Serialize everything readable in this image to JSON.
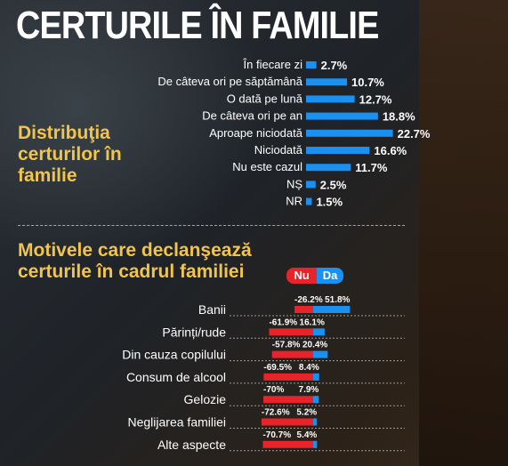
{
  "title": "CERTURILE ÎN FAMILIE",
  "section1_label": "Distribuţia certurilor în familie",
  "section2_label": "Motivele care declanşează certurile în cadrul familiei",
  "legend": {
    "nu": "Nu",
    "da": "Da"
  },
  "colors": {
    "blue": "#1a90f0",
    "red": "#e8232a",
    "accent": "#f2c44a"
  },
  "chart_data": [
    {
      "type": "bar",
      "orientation": "horizontal",
      "categories": [
        "În fiecare zi",
        "De câteva ori pe săptămână",
        "O dată pe lună",
        "De câteva ori pe an",
        "Aproape niciodată",
        "Niciodată",
        "Nu este cazul",
        "NȘ",
        "NR"
      ],
      "values": [
        2.7,
        10.7,
        12.7,
        18.8,
        22.7,
        16.6,
        11.7,
        2.5,
        1.5
      ],
      "value_labels": [
        "2.7%",
        "10.7%",
        "12.7%",
        "18.8%",
        "22.7%",
        "16.6%",
        "11.7%",
        "2.5%",
        "1.5%"
      ]
    },
    {
      "type": "bar",
      "orientation": "horizontal-diverging",
      "categories": [
        "Banii",
        "Părinți/rude",
        "Din cauza copilului",
        "Consum de alcool",
        "Gelozie",
        "Neglijarea familiei",
        "Alte aspecte"
      ],
      "series": [
        {
          "name": "Nu",
          "values": [
            -26.2,
            -61.9,
            -57.8,
            -69.5,
            -70,
            -72.6,
            -70.7
          ],
          "labels": [
            "-26.2%",
            "-61.9%",
            "-57.8%",
            "-69.5%",
            "-70%",
            "-72.6%",
            "-70.7%"
          ]
        },
        {
          "name": "Da",
          "values": [
            51.8,
            16.1,
            20.4,
            8.4,
            7.9,
            5.2,
            5.4
          ],
          "labels": [
            "51.8%",
            "16.1%",
            "20.4%",
            "8.4%",
            "7.9%",
            "5.2%",
            "5.4%"
          ]
        }
      ]
    }
  ]
}
